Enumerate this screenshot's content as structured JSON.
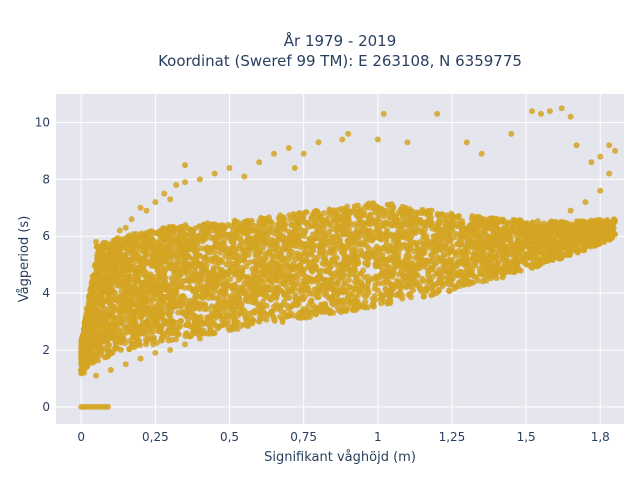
{
  "chart_data": {
    "type": "scatter",
    "title": "År 1979 - 2019",
    "subtitle": "Koordinat (Sweref 99 TM): E 263108, N 6359775",
    "xlabel": "Signifikant våghöjd (m)",
    "ylabel": "Vågperiod (s)",
    "xlim": [
      -0.085,
      1.83
    ],
    "ylim": [
      -0.6,
      11
    ],
    "x_ticks": [
      0,
      0.25,
      0.5,
      0.75,
      1,
      1.25,
      1.5,
      1.75
    ],
    "x_tick_labels": [
      "0",
      "0,25",
      "0,5",
      "0,75",
      "1",
      "1,25",
      "1,5",
      "1,8"
    ],
    "y_ticks": [
      0,
      2,
      4,
      6,
      8,
      10
    ],
    "y_tick_labels": [
      "0",
      "2",
      "4",
      "6",
      "8",
      "10"
    ],
    "grid": true,
    "legend": "none",
    "marker_color": "#d4a422",
    "plot_bg": "#e5e5ee",
    "series": [
      {
        "values_description_free": true,
        "points": [
          [
            0.0,
            0.0
          ],
          [
            0.01,
            0.0
          ],
          [
            0.02,
            0.0
          ],
          [
            0.03,
            0.0
          ],
          [
            0.04,
            0.0
          ],
          [
            0.05,
            0.0
          ],
          [
            0.06,
            0.0
          ],
          [
            0.07,
            0.0
          ],
          [
            0.08,
            0.0
          ],
          [
            0.09,
            0.0
          ],
          [
            0.0,
            1.3
          ],
          [
            0.0,
            1.7
          ],
          [
            0.01,
            1.2
          ],
          [
            0.01,
            2.1
          ],
          [
            0.02,
            2.6
          ],
          [
            0.02,
            1.5
          ],
          [
            0.03,
            3.1
          ],
          [
            0.03,
            1.9
          ],
          [
            0.04,
            4.1
          ],
          [
            0.05,
            4.9
          ],
          [
            0.06,
            5.3
          ],
          [
            0.07,
            3.6
          ],
          [
            0.05,
            5.8
          ],
          [
            0.08,
            5.7
          ],
          [
            0.09,
            4.4
          ],
          [
            0.1,
            5.1
          ],
          [
            0.11,
            5.6
          ],
          [
            0.12,
            5.9
          ],
          [
            0.13,
            6.2
          ],
          [
            0.15,
            6.3
          ],
          [
            0.17,
            6.6
          ],
          [
            0.2,
            7.0
          ],
          [
            0.22,
            6.9
          ],
          [
            0.25,
            7.2
          ],
          [
            0.28,
            7.5
          ],
          [
            0.3,
            7.3
          ],
          [
            0.32,
            7.8
          ],
          [
            0.35,
            7.9
          ],
          [
            0.35,
            8.5
          ],
          [
            0.4,
            8.0
          ],
          [
            0.45,
            8.2
          ],
          [
            0.5,
            8.4
          ],
          [
            0.55,
            8.1
          ],
          [
            0.6,
            8.6
          ],
          [
            0.65,
            8.9
          ],
          [
            0.7,
            9.1
          ],
          [
            0.72,
            8.4
          ],
          [
            0.75,
            8.9
          ],
          [
            0.8,
            9.3
          ],
          [
            0.88,
            9.4
          ],
          [
            0.9,
            9.6
          ],
          [
            1.0,
            9.4
          ],
          [
            1.02,
            10.3
          ],
          [
            1.1,
            9.3
          ],
          [
            1.2,
            10.3
          ],
          [
            1.3,
            9.3
          ],
          [
            1.35,
            8.9
          ],
          [
            1.45,
            9.6
          ],
          [
            1.52,
            10.4
          ],
          [
            1.55,
            10.3
          ],
          [
            1.58,
            10.4
          ],
          [
            1.62,
            10.5
          ],
          [
            1.65,
            10.2
          ],
          [
            1.67,
            9.2
          ],
          [
            1.72,
            8.6
          ],
          [
            1.75,
            8.8
          ],
          [
            1.78,
            9.2
          ],
          [
            1.8,
            9.0
          ],
          [
            1.78,
            8.2
          ],
          [
            1.75,
            7.6
          ],
          [
            1.7,
            7.2
          ],
          [
            1.65,
            6.9
          ],
          [
            1.6,
            6.5
          ],
          [
            1.55,
            6.1
          ],
          [
            1.5,
            5.8
          ],
          [
            1.45,
            5.6
          ],
          [
            1.4,
            5.3
          ],
          [
            1.35,
            5.1
          ],
          [
            1.3,
            5.0
          ],
          [
            1.25,
            4.9
          ],
          [
            1.2,
            4.7
          ],
          [
            1.15,
            4.5
          ],
          [
            1.1,
            4.3
          ],
          [
            1.05,
            4.2
          ],
          [
            1.0,
            4.1
          ],
          [
            0.95,
            4.0
          ],
          [
            0.9,
            3.8
          ],
          [
            0.85,
            3.6
          ],
          [
            0.8,
            3.4
          ],
          [
            0.75,
            3.3
          ],
          [
            0.7,
            3.2
          ],
          [
            0.65,
            3.1
          ],
          [
            0.6,
            3.0
          ],
          [
            0.55,
            2.9
          ],
          [
            0.5,
            2.7
          ],
          [
            0.45,
            2.6
          ],
          [
            0.4,
            2.4
          ],
          [
            0.35,
            2.2
          ],
          [
            0.3,
            2.0
          ],
          [
            0.25,
            1.9
          ],
          [
            0.2,
            1.7
          ],
          [
            0.15,
            1.5
          ],
          [
            0.1,
            1.3
          ],
          [
            0.05,
            1.1
          ]
        ]
      }
    ]
  }
}
